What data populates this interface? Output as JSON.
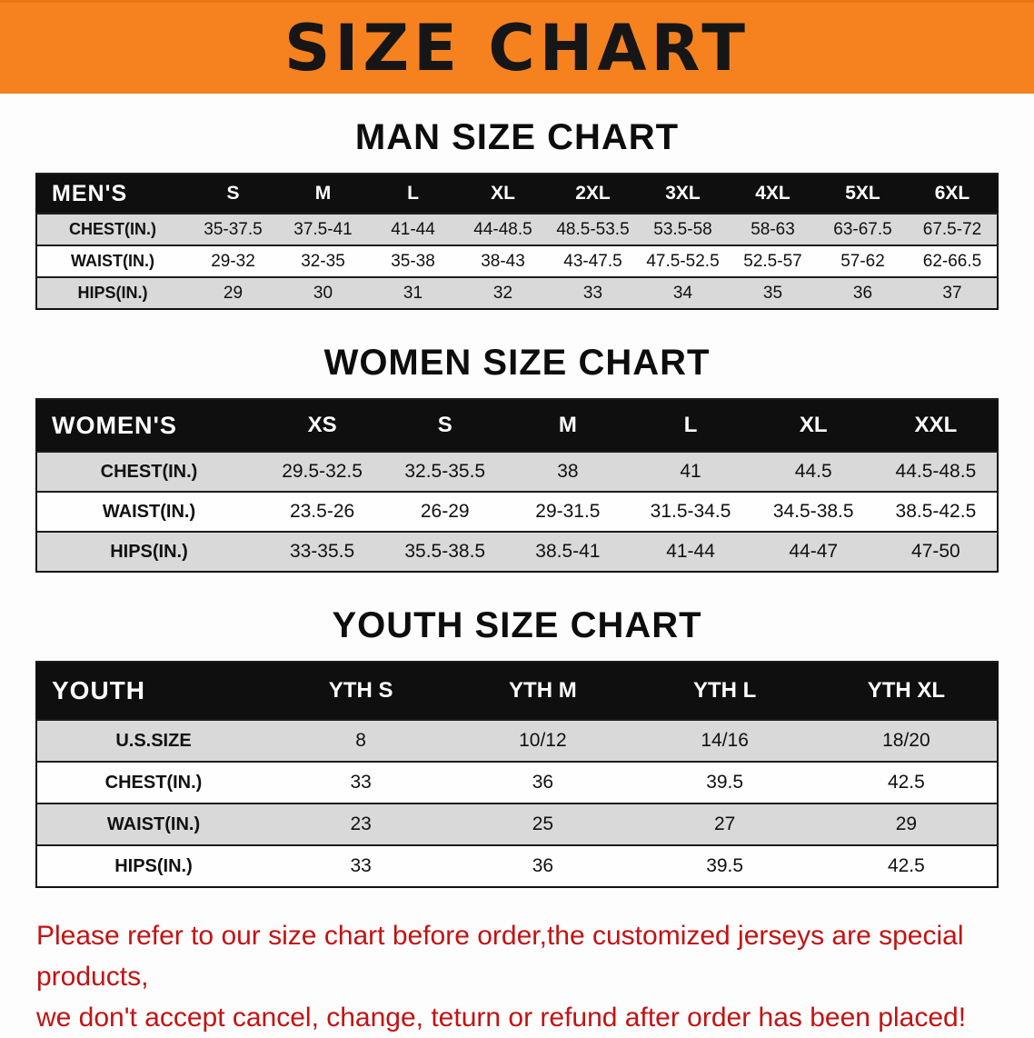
{
  "banner": {
    "title": "SIZE CHART",
    "bg_color": "#F5821F",
    "text_color": "#161616"
  },
  "sections": [
    {
      "title": "MAN SIZE CHART",
      "table": {
        "header": [
          "MEN'S",
          "S",
          "M",
          "L",
          "XL",
          "2XL",
          "3XL",
          "4XL",
          "5XL",
          "6XL"
        ],
        "rows": [
          [
            "CHEST(IN.)",
            "35-37.5",
            "37.5-41",
            "41-44",
            "44-48.5",
            "48.5-53.5",
            "53.5-58",
            "58-63",
            "63-67.5",
            "67.5-72"
          ],
          [
            "WAIST(IN.)",
            "29-32",
            "32-35",
            "35-38",
            "38-43",
            "43-47.5",
            "47.5-52.5",
            "52.5-57",
            "57-62",
            "62-66.5"
          ],
          [
            "HIPS(IN.)",
            "29",
            "30",
            "31",
            "32",
            "33",
            "34",
            "35",
            "36",
            "37"
          ]
        ]
      }
    },
    {
      "title": "WOMEN SIZE CHART",
      "table": {
        "header": [
          "WOMEN'S",
          "XS",
          "S",
          "M",
          "L",
          "XL",
          "XXL"
        ],
        "rows": [
          [
            "CHEST(IN.)",
            "29.5-32.5",
            "32.5-35.5",
            "38",
            "41",
            "44.5",
            "44.5-48.5"
          ],
          [
            "WAIST(IN.)",
            "23.5-26",
            "26-29",
            "29-31.5",
            "31.5-34.5",
            "34.5-38.5",
            "38.5-42.5"
          ],
          [
            "HIPS(IN.)",
            "33-35.5",
            "35.5-38.5",
            "38.5-41",
            "41-44",
            "44-47",
            "47-50"
          ]
        ]
      }
    },
    {
      "title": "YOUTH SIZE CHART",
      "table": {
        "header": [
          "YOUTH",
          "YTH S",
          "YTH M",
          "YTH L",
          "YTH XL"
        ],
        "rows": [
          [
            "U.S.SIZE",
            "8",
            "10/12",
            "14/16",
            "18/20"
          ],
          [
            "CHEST(IN.)",
            "33",
            "36",
            "39.5",
            "42.5"
          ],
          [
            "WAIST(IN.)",
            "23",
            "25",
            "27",
            "29"
          ],
          [
            "HIPS(IN.)",
            "33",
            "36",
            "39.5",
            "42.5"
          ]
        ]
      }
    }
  ],
  "footer": {
    "line1": "Please refer to our size chart before order,the customized jerseys are special products,",
    "line2": "we don't accept cancel, change, teturn or refund after order has been placed!",
    "text_color": "#c21313"
  },
  "colors": {
    "table_header_bg": "#0f0f0f",
    "row_shaded": "#d9d9d9",
    "row_plain": "#fefefe"
  }
}
